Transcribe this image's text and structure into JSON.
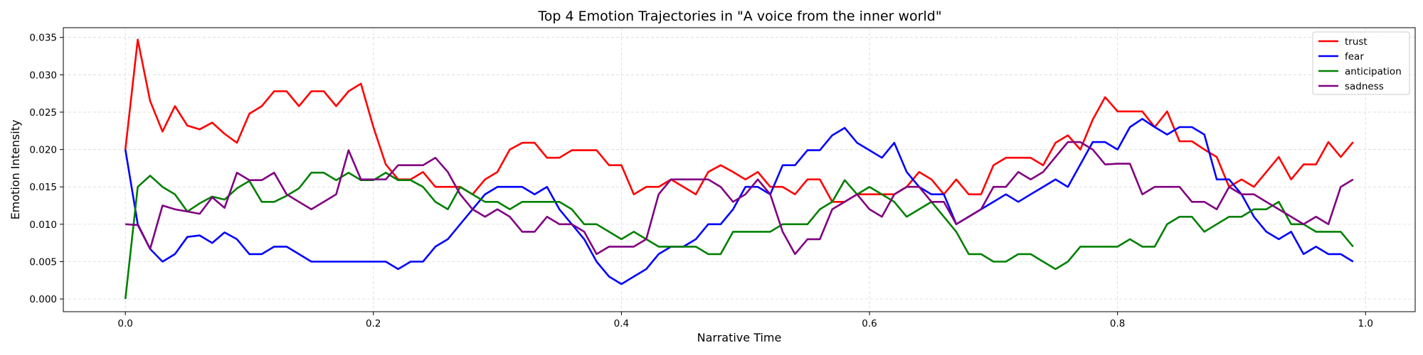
{
  "chart_data": {
    "type": "line",
    "title": "Top 4 Emotion Trajectories in \"A voice from the inner world\"",
    "xlabel": "Narrative Time",
    "ylabel": "Emotion Intensity",
    "xlim": [
      -0.05,
      1.04
    ],
    "ylim": [
      -0.0017,
      0.0363
    ],
    "xticks": [
      0.0,
      0.2,
      0.4,
      0.6,
      0.8,
      1.0
    ],
    "xtick_labels": [
      "0.0",
      "0.2",
      "0.4",
      "0.6",
      "0.8",
      "1.0"
    ],
    "yticks": [
      0.0,
      0.005,
      0.01,
      0.015,
      0.02,
      0.025,
      0.03,
      0.035
    ],
    "ytick_labels": [
      "0.000",
      "0.005",
      "0.010",
      "0.015",
      "0.020",
      "0.025",
      "0.030",
      "0.035"
    ],
    "grid": true,
    "legend_position": "top-right",
    "x": [
      0.0,
      0.01,
      0.02,
      0.03,
      0.04,
      0.05,
      0.06,
      0.07,
      0.08,
      0.09,
      0.1,
      0.11,
      0.12,
      0.13,
      0.14,
      0.15,
      0.16,
      0.17,
      0.18,
      0.19,
      0.2,
      0.21,
      0.22,
      0.23,
      0.24,
      0.25,
      0.26,
      0.27,
      0.28,
      0.29,
      0.3,
      0.31,
      0.32,
      0.33,
      0.34,
      0.35,
      0.36,
      0.37,
      0.38,
      0.39,
      0.4,
      0.41,
      0.42,
      0.43,
      0.44,
      0.45,
      0.46,
      0.47,
      0.48,
      0.49,
      0.5,
      0.51,
      0.52,
      0.53,
      0.54,
      0.55,
      0.56,
      0.57,
      0.58,
      0.59,
      0.6,
      0.61,
      0.62,
      0.63,
      0.64,
      0.65,
      0.66,
      0.67,
      0.68,
      0.69,
      0.7,
      0.71,
      0.72,
      0.73,
      0.74,
      0.75,
      0.76,
      0.77,
      0.78,
      0.79,
      0.8,
      0.81,
      0.82,
      0.83,
      0.84,
      0.85,
      0.86,
      0.87,
      0.88,
      0.89,
      0.9,
      0.91,
      0.92,
      0.93,
      0.94,
      0.95,
      0.96,
      0.97,
      0.98,
      0.99
    ],
    "series": [
      {
        "name": "trust",
        "color": "#ff0000",
        "values": [
          0.02,
          0.0347,
          0.0265,
          0.0224,
          0.0258,
          0.0232,
          0.0227,
          0.0236,
          0.0221,
          0.0209,
          0.0248,
          0.0258,
          0.0278,
          0.0278,
          0.0258,
          0.0278,
          0.0278,
          0.0258,
          0.0278,
          0.0288,
          0.023,
          0.018,
          0.016,
          0.016,
          0.017,
          0.015,
          0.015,
          0.015,
          0.014,
          0.016,
          0.017,
          0.02,
          0.0209,
          0.0209,
          0.0189,
          0.0189,
          0.0199,
          0.0199,
          0.0199,
          0.0179,
          0.0179,
          0.014,
          0.015,
          0.015,
          0.016,
          0.015,
          0.014,
          0.017,
          0.0179,
          0.017,
          0.016,
          0.017,
          0.015,
          0.015,
          0.014,
          0.016,
          0.016,
          0.013,
          0.013,
          0.014,
          0.014,
          0.014,
          0.014,
          0.015,
          0.017,
          0.016,
          0.014,
          0.016,
          0.014,
          0.014,
          0.0179,
          0.0189,
          0.0189,
          0.0189,
          0.0179,
          0.0209,
          0.0219,
          0.02,
          0.024,
          0.027,
          0.0251,
          0.0251,
          0.0251,
          0.023,
          0.0251,
          0.0211,
          0.0211,
          0.02,
          0.019,
          0.015,
          0.016,
          0.015,
          0.017,
          0.019,
          0.016,
          0.018,
          0.018,
          0.021,
          0.019,
          0.021
        ]
      },
      {
        "name": "fear",
        "color": "#0000ff",
        "values": [
          0.02,
          0.01,
          0.0067,
          0.005,
          0.006,
          0.0083,
          0.0085,
          0.0075,
          0.0089,
          0.008,
          0.006,
          0.006,
          0.007,
          0.007,
          0.006,
          0.005,
          0.005,
          0.005,
          0.005,
          0.005,
          0.005,
          0.005,
          0.004,
          0.005,
          0.005,
          0.007,
          0.008,
          0.01,
          0.012,
          0.014,
          0.015,
          0.015,
          0.015,
          0.014,
          0.015,
          0.012,
          0.01,
          0.008,
          0.005,
          0.003,
          0.002,
          0.003,
          0.004,
          0.006,
          0.007,
          0.007,
          0.008,
          0.01,
          0.01,
          0.012,
          0.015,
          0.015,
          0.014,
          0.0179,
          0.0179,
          0.0199,
          0.0199,
          0.0219,
          0.0229,
          0.0209,
          0.0199,
          0.0189,
          0.0209,
          0.017,
          0.015,
          0.014,
          0.014,
          0.01,
          0.011,
          0.012,
          0.013,
          0.014,
          0.013,
          0.014,
          0.015,
          0.016,
          0.015,
          0.018,
          0.021,
          0.021,
          0.02,
          0.023,
          0.0241,
          0.023,
          0.022,
          0.023,
          0.023,
          0.022,
          0.016,
          0.016,
          0.014,
          0.011,
          0.009,
          0.008,
          0.009,
          0.006,
          0.007,
          0.006,
          0.006,
          0.005
        ]
      },
      {
        "name": "anticipation",
        "color": "#008000",
        "values": [
          0.0,
          0.015,
          0.0165,
          0.015,
          0.014,
          0.0117,
          0.0128,
          0.0137,
          0.0133,
          0.0148,
          0.0158,
          0.013,
          0.013,
          0.0138,
          0.0148,
          0.0169,
          0.0169,
          0.0159,
          0.0169,
          0.0159,
          0.0159,
          0.0169,
          0.0159,
          0.0159,
          0.015,
          0.013,
          0.012,
          0.015,
          0.014,
          0.013,
          0.013,
          0.012,
          0.013,
          0.013,
          0.013,
          0.013,
          0.012,
          0.01,
          0.01,
          0.009,
          0.008,
          0.009,
          0.008,
          0.007,
          0.007,
          0.007,
          0.007,
          0.006,
          0.006,
          0.009,
          0.009,
          0.009,
          0.009,
          0.01,
          0.01,
          0.01,
          0.012,
          0.013,
          0.0159,
          0.014,
          0.015,
          0.014,
          0.013,
          0.011,
          0.012,
          0.013,
          0.011,
          0.009,
          0.006,
          0.006,
          0.005,
          0.005,
          0.006,
          0.006,
          0.005,
          0.004,
          0.005,
          0.007,
          0.007,
          0.007,
          0.007,
          0.008,
          0.007,
          0.007,
          0.01,
          0.011,
          0.011,
          0.009,
          0.01,
          0.011,
          0.011,
          0.012,
          0.012,
          0.013,
          0.01,
          0.01,
          0.009,
          0.009,
          0.009,
          0.007
        ]
      },
      {
        "name": "sadness",
        "color": "#800080",
        "values": [
          0.01,
          0.0099,
          0.0067,
          0.0125,
          0.012,
          0.0117,
          0.0114,
          0.0136,
          0.0122,
          0.0169,
          0.0159,
          0.0159,
          0.0169,
          0.014,
          0.013,
          0.012,
          0.013,
          0.014,
          0.0199,
          0.016,
          0.016,
          0.016,
          0.0179,
          0.0179,
          0.0179,
          0.0189,
          0.017,
          0.014,
          0.012,
          0.011,
          0.012,
          0.011,
          0.009,
          0.009,
          0.011,
          0.01,
          0.01,
          0.009,
          0.006,
          0.007,
          0.007,
          0.007,
          0.008,
          0.014,
          0.016,
          0.016,
          0.016,
          0.016,
          0.015,
          0.013,
          0.014,
          0.016,
          0.014,
          0.009,
          0.006,
          0.008,
          0.008,
          0.012,
          0.013,
          0.014,
          0.012,
          0.011,
          0.014,
          0.015,
          0.015,
          0.013,
          0.013,
          0.01,
          0.011,
          0.012,
          0.015,
          0.015,
          0.017,
          0.016,
          0.017,
          0.019,
          0.021,
          0.021,
          0.02,
          0.018,
          0.0181,
          0.0181,
          0.014,
          0.015,
          0.015,
          0.015,
          0.013,
          0.013,
          0.012,
          0.015,
          0.014,
          0.014,
          0.013,
          0.012,
          0.011,
          0.01,
          0.011,
          0.01,
          0.015,
          0.016
        ]
      }
    ]
  }
}
